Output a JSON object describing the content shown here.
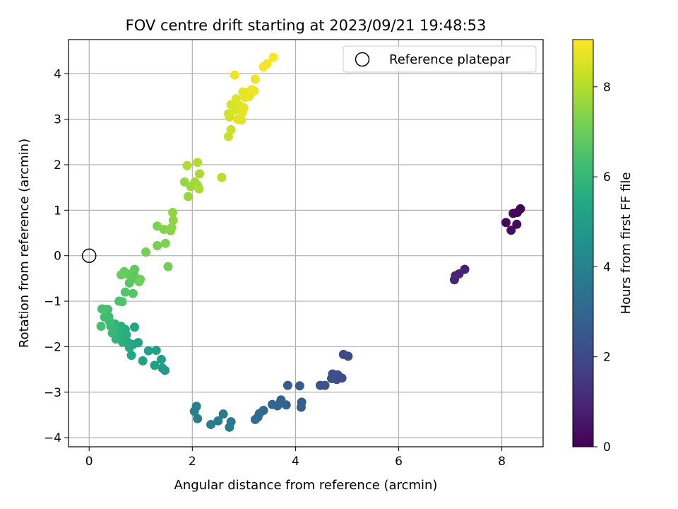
{
  "chart_data": {
    "type": "scatter",
    "title": "FOV centre drift starting at 2023/09/21 19:48:53",
    "xlabel": "Angular distance from reference (arcmin)",
    "ylabel": "Rotation from reference (arcmin)",
    "xlim": [
      -0.4,
      8.8
    ],
    "ylim": [
      -4.2,
      4.75
    ],
    "xticks": [
      0,
      2,
      4,
      6,
      8
    ],
    "yticks": [
      -4,
      -3,
      -2,
      -1,
      0,
      1,
      2,
      3,
      4
    ],
    "grid": true,
    "legend_position": "top-right",
    "reference": {
      "label": "Reference platepar",
      "x": 0,
      "y": 0
    },
    "colorbar": {
      "label": "Hours from first FF file",
      "colormap": "viridis",
      "range": [
        0,
        9.05
      ],
      "ticks": [
        0,
        2,
        4,
        6,
        8
      ]
    },
    "colors": [
      "#440154",
      "#482475",
      "#414487",
      "#355f8d",
      "#2a788e",
      "#21918c",
      "#22a884",
      "#44bf70",
      "#7ad151",
      "#bddf26",
      "#fde725"
    ],
    "points": [
      {
        "x": 8.36,
        "y": 1.03,
        "t": 0.05
      },
      {
        "x": 8.3,
        "y": 0.95,
        "t": 0.1
      },
      {
        "x": 8.22,
        "y": 0.93,
        "t": 0.15
      },
      {
        "x": 8.08,
        "y": 0.73,
        "t": 0.2
      },
      {
        "x": 8.29,
        "y": 0.69,
        "t": 0.25
      },
      {
        "x": 8.18,
        "y": 0.56,
        "t": 0.3
      },
      {
        "x": 7.28,
        "y": -0.3,
        "t": 0.8
      },
      {
        "x": 7.17,
        "y": -0.4,
        "t": 0.85
      },
      {
        "x": 7.1,
        "y": -0.44,
        "t": 0.9
      },
      {
        "x": 7.08,
        "y": -0.53,
        "t": 0.95
      },
      {
        "x": 5.02,
        "y": -2.21,
        "t": 1.95
      },
      {
        "x": 4.93,
        "y": -2.17,
        "t": 2.0
      },
      {
        "x": 4.9,
        "y": -2.69,
        "t": 2.05
      },
      {
        "x": 4.82,
        "y": -2.62,
        "t": 2.1
      },
      {
        "x": 4.8,
        "y": -2.72,
        "t": 2.15
      },
      {
        "x": 4.72,
        "y": -2.6,
        "t": 2.2
      },
      {
        "x": 4.7,
        "y": -2.7,
        "t": 2.25
      },
      {
        "x": 4.57,
        "y": -2.85,
        "t": 2.3
      },
      {
        "x": 4.48,
        "y": -2.85,
        "t": 2.35
      },
      {
        "x": 4.08,
        "y": -2.86,
        "t": 2.6
      },
      {
        "x": 3.85,
        "y": -2.85,
        "t": 2.65
      },
      {
        "x": 4.12,
        "y": -3.22,
        "t": 2.7
      },
      {
        "x": 4.11,
        "y": -3.33,
        "t": 2.75
      },
      {
        "x": 3.82,
        "y": -3.28,
        "t": 2.8
      },
      {
        "x": 3.72,
        "y": -3.17,
        "t": 2.85
      },
      {
        "x": 3.7,
        "y": -3.24,
        "t": 2.9
      },
      {
        "x": 3.65,
        "y": -3.3,
        "t": 2.95
      },
      {
        "x": 3.55,
        "y": -3.27,
        "t": 3.0
      },
      {
        "x": 3.38,
        "y": -3.4,
        "t": 3.05
      },
      {
        "x": 3.3,
        "y": -3.47,
        "t": 3.1
      },
      {
        "x": 3.27,
        "y": -3.55,
        "t": 3.15
      },
      {
        "x": 3.22,
        "y": -3.6,
        "t": 3.2
      },
      {
        "x": 2.75,
        "y": -3.65,
        "t": 3.6
      },
      {
        "x": 2.72,
        "y": -3.77,
        "t": 3.65
      },
      {
        "x": 2.6,
        "y": -3.48,
        "t": 3.7
      },
      {
        "x": 2.5,
        "y": -3.63,
        "t": 3.75
      },
      {
        "x": 2.36,
        "y": -3.71,
        "t": 3.8
      },
      {
        "x": 2.1,
        "y": -3.58,
        "t": 3.85
      },
      {
        "x": 2.04,
        "y": -3.42,
        "t": 3.9
      },
      {
        "x": 2.08,
        "y": -3.31,
        "t": 3.95
      },
      {
        "x": 1.47,
        "y": -2.52,
        "t": 4.9
      },
      {
        "x": 1.42,
        "y": -2.47,
        "t": 4.95
      },
      {
        "x": 1.4,
        "y": -2.28,
        "t": 5.0
      },
      {
        "x": 1.3,
        "y": -2.08,
        "t": 5.05
      },
      {
        "x": 1.27,
        "y": -2.41,
        "t": 5.1
      },
      {
        "x": 1.15,
        "y": -2.09,
        "t": 5.15
      },
      {
        "x": 1.04,
        "y": -2.31,
        "t": 5.2
      },
      {
        "x": 0.95,
        "y": -1.91,
        "t": 5.25
      },
      {
        "x": 0.88,
        "y": -1.57,
        "t": 5.3
      },
      {
        "x": 0.85,
        "y": -1.95,
        "t": 5.35
      },
      {
        "x": 0.82,
        "y": -2.19,
        "t": 5.4
      },
      {
        "x": 0.78,
        "y": -2.02,
        "t": 5.45
      },
      {
        "x": 0.75,
        "y": -1.9,
        "t": 5.5
      },
      {
        "x": 0.72,
        "y": -1.74,
        "t": 5.55
      },
      {
        "x": 0.7,
        "y": -1.62,
        "t": 5.6
      },
      {
        "x": 0.65,
        "y": -1.9,
        "t": 5.65
      },
      {
        "x": 0.62,
        "y": -1.55,
        "t": 5.7
      },
      {
        "x": 0.58,
        "y": -1.73,
        "t": 5.75
      },
      {
        "x": 0.55,
        "y": -1.63,
        "t": 5.8
      },
      {
        "x": 0.52,
        "y": -1.83,
        "t": 5.85
      },
      {
        "x": 0.5,
        "y": -1.5,
        "t": 5.9
      },
      {
        "x": 0.48,
        "y": -1.62,
        "t": 5.95
      },
      {
        "x": 0.45,
        "y": -1.7,
        "t": 6.0
      },
      {
        "x": 0.42,
        "y": -1.55,
        "t": 6.05
      },
      {
        "x": 0.4,
        "y": -1.45,
        "t": 6.1
      },
      {
        "x": 0.38,
        "y": -1.34,
        "t": 6.15
      },
      {
        "x": 0.36,
        "y": -1.18,
        "t": 6.2
      },
      {
        "x": 0.3,
        "y": -1.35,
        "t": 6.25
      },
      {
        "x": 0.25,
        "y": -1.17,
        "t": 6.3
      },
      {
        "x": 0.23,
        "y": -1.55,
        "t": 6.35
      },
      {
        "x": 0.3,
        "y": -1.18,
        "t": 6.4
      },
      {
        "x": 0.58,
        "y": -1.0,
        "t": 6.45
      },
      {
        "x": 0.64,
        "y": -1.01,
        "t": 6.5
      },
      {
        "x": 0.7,
        "y": -0.8,
        "t": 6.55
      },
      {
        "x": 0.85,
        "y": -0.83,
        "t": 6.6
      },
      {
        "x": 0.78,
        "y": -0.6,
        "t": 6.65
      },
      {
        "x": 0.82,
        "y": -0.52,
        "t": 6.7
      },
      {
        "x": 0.87,
        "y": -0.42,
        "t": 6.75
      },
      {
        "x": 0.88,
        "y": -0.3,
        "t": 6.8
      },
      {
        "x": 0.74,
        "y": -0.4,
        "t": 6.85
      },
      {
        "x": 0.68,
        "y": -0.35,
        "t": 6.9
      },
      {
        "x": 0.62,
        "y": -0.42,
        "t": 6.95
      },
      {
        "x": 0.99,
        "y": -0.52,
        "t": 7.0
      },
      {
        "x": 0.97,
        "y": -0.57,
        "t": 7.05
      },
      {
        "x": 1.53,
        "y": -0.24,
        "t": 7.1
      },
      {
        "x": 1.1,
        "y": 0.08,
        "t": 7.15
      },
      {
        "x": 1.32,
        "y": 0.22,
        "t": 7.2
      },
      {
        "x": 1.48,
        "y": 0.27,
        "t": 7.25
      },
      {
        "x": 1.32,
        "y": 0.65,
        "t": 7.3
      },
      {
        "x": 1.45,
        "y": 0.58,
        "t": 7.35
      },
      {
        "x": 1.58,
        "y": 0.55,
        "t": 7.4
      },
      {
        "x": 1.6,
        "y": 0.62,
        "t": 7.45
      },
      {
        "x": 1.63,
        "y": 0.78,
        "t": 7.5
      },
      {
        "x": 1.62,
        "y": 0.95,
        "t": 7.55
      },
      {
        "x": 1.85,
        "y": 1.62,
        "t": 7.6
      },
      {
        "x": 1.92,
        "y": 1.3,
        "t": 7.65
      },
      {
        "x": 1.97,
        "y": 1.52,
        "t": 7.7
      },
      {
        "x": 2.05,
        "y": 1.62,
        "t": 7.75
      },
      {
        "x": 2.1,
        "y": 1.55,
        "t": 7.8
      },
      {
        "x": 2.13,
        "y": 1.47,
        "t": 7.85
      },
      {
        "x": 2.14,
        "y": 1.8,
        "t": 7.9
      },
      {
        "x": 1.9,
        "y": 1.98,
        "t": 7.95
      },
      {
        "x": 2.1,
        "y": 2.05,
        "t": 8.0
      },
      {
        "x": 2.57,
        "y": 1.72,
        "t": 8.05
      },
      {
        "x": 2.7,
        "y": 2.62,
        "t": 8.3
      },
      {
        "x": 2.75,
        "y": 2.77,
        "t": 8.35
      },
      {
        "x": 2.72,
        "y": 3.05,
        "t": 8.4
      },
      {
        "x": 2.7,
        "y": 3.12,
        "t": 8.45
      },
      {
        "x": 2.75,
        "y": 3.32,
        "t": 8.5
      },
      {
        "x": 2.82,
        "y": 3.2,
        "t": 8.55
      },
      {
        "x": 2.85,
        "y": 3.45,
        "t": 8.6
      },
      {
        "x": 2.88,
        "y": 3.0,
        "t": 8.62
      },
      {
        "x": 2.92,
        "y": 3.3,
        "t": 8.64
      },
      {
        "x": 2.95,
        "y": 2.98,
        "t": 8.66
      },
      {
        "x": 2.97,
        "y": 3.15,
        "t": 8.68
      },
      {
        "x": 3.0,
        "y": 3.25,
        "t": 8.7
      },
      {
        "x": 2.98,
        "y": 3.6,
        "t": 8.72
      },
      {
        "x": 3.02,
        "y": 3.48,
        "t": 8.74
      },
      {
        "x": 3.08,
        "y": 3.58,
        "t": 8.76
      },
      {
        "x": 3.1,
        "y": 3.5,
        "t": 8.78
      },
      {
        "x": 3.15,
        "y": 3.65,
        "t": 8.8
      },
      {
        "x": 3.2,
        "y": 3.62,
        "t": 8.82
      },
      {
        "x": 3.22,
        "y": 3.88,
        "t": 8.84
      },
      {
        "x": 2.82,
        "y": 3.97,
        "t": 8.86
      },
      {
        "x": 3.38,
        "y": 4.15,
        "t": 8.9
      },
      {
        "x": 3.45,
        "y": 4.22,
        "t": 8.95
      },
      {
        "x": 3.57,
        "y": 4.36,
        "t": 9.0
      }
    ]
  }
}
